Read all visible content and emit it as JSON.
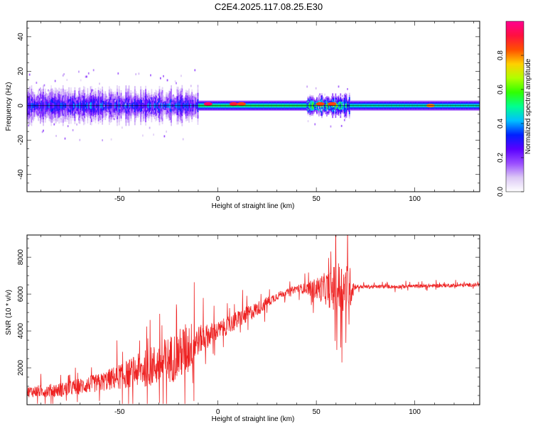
{
  "title": "C2E4.2025.117.08.25.E30",
  "chart_data": [
    {
      "type": "heatmap",
      "name": "spectrogram",
      "xlabel": "Height of straight line (km)",
      "ylabel": "Frequency (Hz)",
      "xlim": [
        -97,
        133
      ],
      "ylim": [
        -50,
        49
      ],
      "xticks": [
        "-50",
        "0",
        "50",
        "100"
      ],
      "xtick_values": [
        -50,
        0,
        50,
        100
      ],
      "yticks": [
        "-40",
        "-20",
        "0",
        "20",
        "40"
      ],
      "ytick_values": [
        -40,
        -20,
        0,
        20,
        40
      ],
      "colorbar": {
        "label": "Normalized spectral amplitude",
        "range": [
          0,
          1
        ],
        "ticks": [
          "0.0",
          "0.2",
          "0.4",
          "0.6",
          "0.8"
        ],
        "tick_values": [
          0.0,
          0.2,
          0.4,
          0.6,
          0.8
        ],
        "colormap": [
          "#ffffff",
          "#dcc8f5",
          "#9a4dff",
          "#5a00ff",
          "#0020ff",
          "#00c0ff",
          "#00ff90",
          "#30ff00",
          "#b0ff00",
          "#ffd000",
          "#ff5000",
          "#ff1040",
          "#ff0090"
        ]
      },
      "centerline_frequency": 0,
      "bands": [
        {
          "x_range": [
            -97,
            -10
          ],
          "center": 0,
          "half_width": 8,
          "amplitude": 0.3,
          "pattern": "noisy"
        },
        {
          "x_range": [
            -10,
            45
          ],
          "center": 0,
          "half_width": 3,
          "amplitude": 0.55
        },
        {
          "x_range": [
            45,
            67
          ],
          "center": 0,
          "half_width": 5,
          "amplitude": 0.5,
          "pattern": "noisy"
        },
        {
          "x_range": [
            67,
            133
          ],
          "center": 0,
          "half_width": 3,
          "amplitude": 0.5
        }
      ],
      "peaks": [
        {
          "x": -5,
          "frequency": 1,
          "amplitude": 0.95
        },
        {
          "x": 8,
          "frequency": 1,
          "amplitude": 0.9
        },
        {
          "x": 12,
          "frequency": 1,
          "amplitude": 0.85
        },
        {
          "x": 52,
          "frequency": 1,
          "amplitude": 0.85
        },
        {
          "x": 58,
          "frequency": 1,
          "amplitude": 0.85
        },
        {
          "x": 108,
          "frequency": 0,
          "amplitude": 0.8
        }
      ]
    },
    {
      "type": "line",
      "name": "snr",
      "xlabel": "Height of straight line (km)",
      "ylabel": "SNR (10 * v/v)",
      "xlim": [
        -97,
        133
      ],
      "ylim": [
        0,
        9200
      ],
      "xticks": [
        "-50",
        "0",
        "50",
        "100"
      ],
      "xtick_values": [
        -50,
        0,
        50,
        100
      ],
      "yticks": [
        "2000",
        "4000",
        "6000",
        "8000"
      ],
      "ytick_values": [
        2000,
        4000,
        6000,
        8000
      ],
      "line_color": "#ee2222",
      "trend": {
        "x": [
          -97,
          -80,
          -60,
          -45,
          -30,
          -20,
          -10,
          0,
          10,
          20,
          30,
          40,
          50,
          60,
          65,
          70,
          90,
          110,
          133
        ],
        "y": [
          700,
          800,
          1200,
          1700,
          2200,
          2700,
          3500,
          4000,
          4600,
          5200,
          5900,
          6300,
          6300,
          6300,
          6300,
          6400,
          6400,
          6450,
          6500
        ]
      },
      "noise_amplitude": {
        "x": [
          -97,
          -60,
          -45,
          -30,
          -15,
          -10,
          0,
          10,
          20,
          35,
          45,
          55,
          62,
          67,
          70,
          133
        ],
        "y": [
          300,
          500,
          800,
          1200,
          1500,
          800,
          500,
          500,
          400,
          150,
          300,
          900,
          1600,
          1200,
          100,
          100
        ]
      }
    }
  ]
}
